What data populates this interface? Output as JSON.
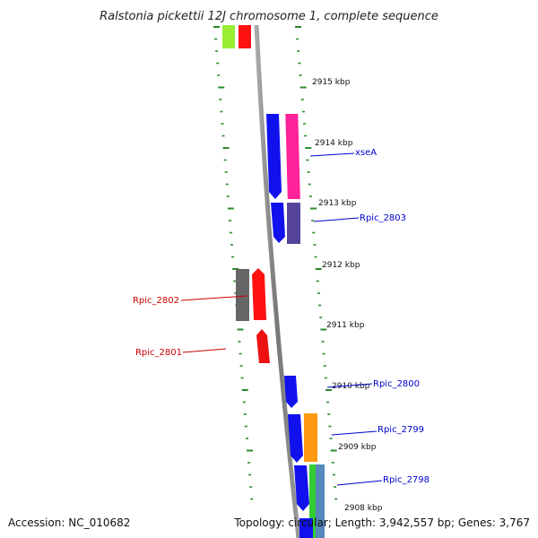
{
  "title": "Ralstonia pickettii 12J chromosome 1, complete sequence",
  "footer": {
    "accession": "Accession: NC_010682",
    "summary": "Topology: circular; Length: 3,942,557 bp; Genes: 3,767"
  },
  "colors": {
    "background": "#ffffff",
    "backbone": "#888888",
    "dotted_guides": "#2a8a2a",
    "gene_label_forward": "#0000cc",
    "gene_label_reverse": "#cc0000"
  },
  "scale_labels": [
    "2915 kbp",
    "2914 kbp",
    "2913 kbp",
    "2912 kbp",
    "2911 kbp",
    "2910 kbp",
    "2909 kbp",
    "2908 kbp"
  ],
  "gene_labels": [
    {
      "text": "xseA",
      "strand": "forward"
    },
    {
      "text": "Rpic_2803",
      "strand": "forward"
    },
    {
      "text": "Rpic_2802",
      "strand": "reverse"
    },
    {
      "text": "Rpic_2801",
      "strand": "reverse"
    },
    {
      "text": "Rpic_2800",
      "strand": "forward"
    },
    {
      "text": "Rpic_2799",
      "strand": "forward"
    },
    {
      "text": "Rpic_2798",
      "strand": "forward"
    }
  ],
  "features": [
    {
      "name": "feature-light-green-top",
      "color": "#99ee33"
    },
    {
      "name": "feature-red-top",
      "color": "#ff1111"
    },
    {
      "name": "feature-blue-xseA",
      "color": "#1111ee"
    },
    {
      "name": "feature-pink-xseA",
      "color": "#ff2299"
    },
    {
      "name": "feature-blue-rpic-2803",
      "color": "#1111ee"
    },
    {
      "name": "feature-purple-rpic-2803",
      "color": "#554499"
    },
    {
      "name": "feature-gray-rpic-2802",
      "color": "#666666"
    },
    {
      "name": "feature-red-rpic-2802",
      "color": "#ff1111"
    },
    {
      "name": "feature-red-rpic-2801",
      "color": "#ee1111"
    },
    {
      "name": "feature-blue-rpic-2800",
      "color": "#1111ee"
    },
    {
      "name": "feature-blue-rpic-2799",
      "color": "#1111ee"
    },
    {
      "name": "feature-orange-rpic-2799",
      "color": "#ff9911"
    },
    {
      "name": "feature-blue-rpic-2798",
      "color": "#1111ee"
    },
    {
      "name": "feature-green-rpic-2798",
      "color": "#33cc33"
    },
    {
      "name": "feature-steelblue-rpic-2798",
      "color": "#5588bb"
    },
    {
      "name": "feature-blue-bottom",
      "color": "#1111ee"
    }
  ]
}
